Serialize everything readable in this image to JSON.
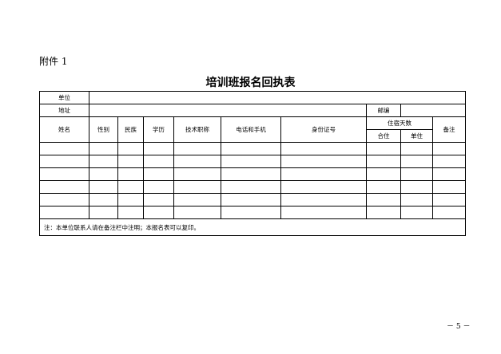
{
  "attachment_label": "附件 1",
  "title": "培训班报名回执表",
  "form": {
    "unit_label": "单位",
    "address_label": "地址",
    "postcode_label": "邮编",
    "columns": [
      "姓名",
      "性别",
      "民族",
      "学历",
      "技术职称",
      "电话和手机",
      "身份证号"
    ],
    "lodging_days_label": "住宿天数",
    "shared_label": "合住",
    "single_label": "单住",
    "remarks_label": "备注",
    "note": "注：本单位联系人请在备注栏中注明；本报名表可以复印。"
  },
  "page_number": "－ 5 －"
}
